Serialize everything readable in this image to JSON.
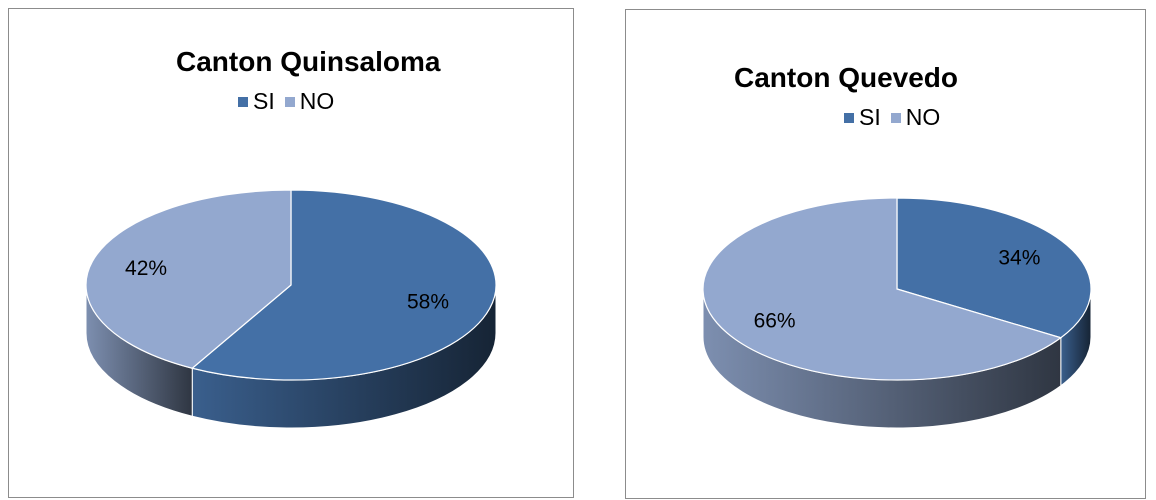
{
  "chart_data": [
    {
      "type": "pie",
      "title": "Canton Quinsaloma",
      "categories": [
        "SI",
        "NO"
      ],
      "values": [
        58,
        42
      ],
      "data_labels": [
        "58%",
        "42%"
      ],
      "colors": [
        "#4470a6",
        "#93a8cf"
      ],
      "legend": "top"
    },
    {
      "type": "pie",
      "title": "Canton Quevedo",
      "categories": [
        "SI",
        "NO"
      ],
      "values": [
        34,
        66
      ],
      "data_labels": [
        "34%",
        "66%"
      ],
      "colors": [
        "#4470a6",
        "#93a8cf"
      ],
      "legend": "top-right"
    }
  ]
}
